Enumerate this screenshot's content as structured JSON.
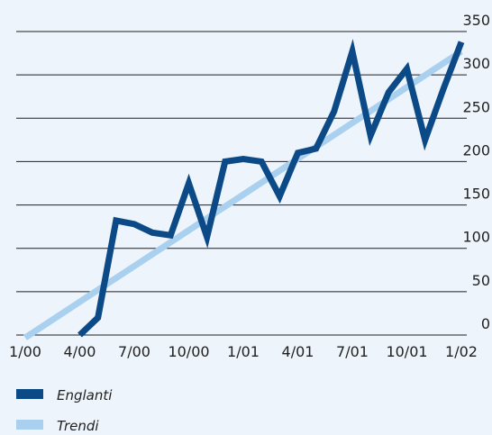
{
  "colors": {
    "background": "#eef4fb",
    "gridline": "#1f1f1f",
    "series_main": "#0b4a86",
    "series_trend": "#a9d0ee"
  },
  "chart_data": {
    "type": "line",
    "x_tick_labels": [
      "1/00",
      "4/00",
      "7/00",
      "10/00",
      "1/01",
      "4/01",
      "7/01",
      "10/01",
      "1/02"
    ],
    "y_ticks": [
      0,
      50,
      100,
      150,
      200,
      250,
      300,
      350
    ],
    "ylim": [
      0,
      350
    ],
    "x_index_range": [
      0,
      24
    ],
    "grid": true,
    "legend_position": "bottom-left",
    "series": [
      {
        "name": "Englanti",
        "x": [
          3,
          4,
          5,
          6,
          7,
          8,
          9,
          10,
          11,
          12,
          13,
          14,
          15,
          16,
          17,
          18,
          19,
          20,
          21,
          22,
          23,
          24
        ],
        "values": [
          0,
          20,
          132,
          128,
          118,
          115,
          175,
          113,
          200,
          203,
          200,
          160,
          210,
          215,
          258,
          327,
          230,
          280,
          307,
          225,
          283,
          338
        ]
      },
      {
        "name": "Trendi",
        "x": [
          0,
          24
        ],
        "values": [
          -3,
          327
        ]
      }
    ]
  }
}
